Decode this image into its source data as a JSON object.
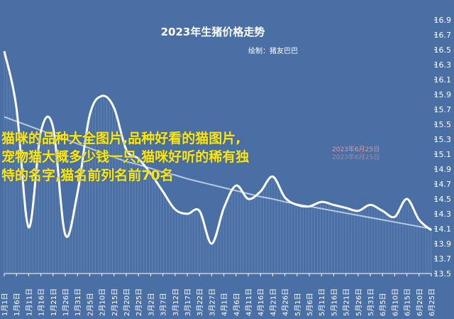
{
  "chart_data": {
    "type": "line",
    "title": "2023年生猪价格走势",
    "credit": "绘制：猪友巴巴",
    "ylim": [
      13.5,
      16.9
    ],
    "yticks": [
      13.5,
      13.7,
      13.9,
      14.1,
      14.3,
      14.5,
      14.7,
      14.9,
      15.1,
      15.3,
      15.5,
      15.7,
      15.9,
      16.1,
      16.3,
      16.5,
      16.7,
      16.9
    ],
    "grid": false,
    "x": [
      "1月1日",
      "1月6日",
      "1月11日",
      "1月16日",
      "1月21日",
      "1月26日",
      "1月31日",
      "2月5日",
      "2月10日",
      "2月15日",
      "2月20日",
      "2月25日",
      "3月2日",
      "3月7日",
      "3月12日",
      "3月17日",
      "3月22日",
      "3月27日",
      "4月1日",
      "4月6日",
      "4月11日",
      "4月16日",
      "4月21日",
      "4月26日",
      "5月1日",
      "5月6日",
      "5月11日",
      "5月16日",
      "5月21日",
      "5月26日",
      "5月31日",
      "6月5日",
      "6月10日",
      "6月15日",
      "6月20日",
      "6月25日"
    ],
    "series": [
      {
        "values": [
          16.48,
          15.72,
          14.12,
          15.4,
          15.46,
          14.02,
          14.58,
          15.62,
          15.88,
          15.72,
          15.16,
          15.04,
          14.84,
          14.6,
          14.36,
          14.3,
          14.34,
          13.9,
          14.38,
          14.68,
          14.5,
          14.6,
          14.8,
          14.52,
          14.42,
          14.4,
          14.46,
          14.42,
          14.38,
          14.34,
          14.42,
          14.34,
          14.26,
          14.5,
          14.22,
          14.08
        ]
      },
      {
        "values": [
          15.6,
          15.54,
          15.48,
          15.42,
          15.36,
          15.3,
          15.24,
          15.18,
          15.12,
          15.06,
          15.0,
          14.96,
          14.91,
          14.86,
          14.82,
          14.77,
          14.73,
          14.69,
          14.65,
          14.61,
          14.57,
          14.53,
          14.5,
          14.46,
          14.43,
          14.4,
          14.37,
          14.34,
          14.31,
          14.28,
          14.25,
          14.22,
          14.19,
          14.16,
          14.13,
          14.1
        ]
      }
    ]
  },
  "overlay": {
    "line1": "猫咪的品种大全图片,品种好看的猫图片,",
    "line2": "宠物猫大概多少钱一只,猫咪好听的稀有独",
    "line3": "特的名字,猫名前列名前70名"
  },
  "stamp": {
    "line1": "2023年6月25日",
    "line2": "2023年6月25日"
  },
  "colors": {
    "background": "#4a6fa5",
    "line": "#ffffff",
    "trend": "#b8c9e0",
    "overlay_text": "#ffe700"
  }
}
